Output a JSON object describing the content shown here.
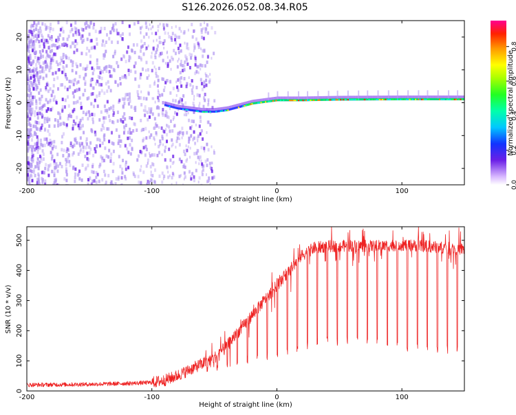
{
  "title": "S126.2026.052.08.34.R05",
  "colors": {
    "snr_line": "#ee2222",
    "spec_dim": "#b59cf2",
    "spec_core": "#6a20e8",
    "frame": "#000000"
  },
  "chart_data": [
    {
      "type": "heatmap",
      "name": "spectrogram",
      "xlabel": "Height of straight line (km)",
      "ylabel": "Frequency (Hz)",
      "xlim": [
        -200,
        150
      ],
      "ylim": [
        -25,
        25
      ],
      "xticks": [
        -200,
        -100,
        0,
        100
      ],
      "yticks": [
        -20,
        -10,
        0,
        10,
        20
      ],
      "colorbar": {
        "label": "Normalized spectral amplitude",
        "range": [
          0,
          0.95
        ],
        "ticks": [
          0.0,
          0.2,
          0.4,
          0.6,
          0.8
        ],
        "tick_labels": [
          "0.0",
          "0.2",
          "0.4",
          "0.6",
          "0.8"
        ]
      },
      "signal_track": {
        "x": [
          -90,
          -80,
          -70,
          -60,
          -50,
          -40,
          -30,
          -20,
          -10,
          0,
          20,
          50,
          100,
          150
        ],
        "freq": [
          -1,
          -2,
          -2.5,
          -3,
          -3,
          -2.5,
          -1.5,
          -0.5,
          0,
          0.5,
          0.5,
          0.7,
          0.8,
          0.8
        ]
      }
    },
    {
      "type": "line",
      "name": "snr",
      "xlabel": "Height of straight line (km)",
      "ylabel": "SNR (10 * v/v)",
      "xlim": [
        -200,
        150
      ],
      "ylim": [
        0,
        545
      ],
      "xticks": [
        -200,
        -100,
        0,
        100
      ],
      "yticks": [
        0,
        100,
        200,
        300,
        400,
        500
      ],
      "series": [
        {
          "name": "SNR",
          "x": [
            -200,
            -150,
            -120,
            -100,
            -90,
            -80,
            -70,
            -60,
            -50,
            -40,
            -30,
            -20,
            -10,
            0,
            10,
            20,
            30,
            40,
            60,
            80,
            100,
            120,
            150
          ],
          "values": [
            20,
            22,
            25,
            28,
            35,
            50,
            70,
            90,
            110,
            150,
            200,
            250,
            300,
            350,
            400,
            450,
            475,
            480,
            482,
            480,
            485,
            480,
            470
          ],
          "dip_floor": [
            20,
            22,
            25,
            28,
            30,
            35,
            40,
            50,
            60,
            70,
            80,
            90,
            100,
            110,
            120,
            130,
            150,
            150,
            150,
            150,
            130,
            130,
            120
          ]
        }
      ]
    }
  ]
}
